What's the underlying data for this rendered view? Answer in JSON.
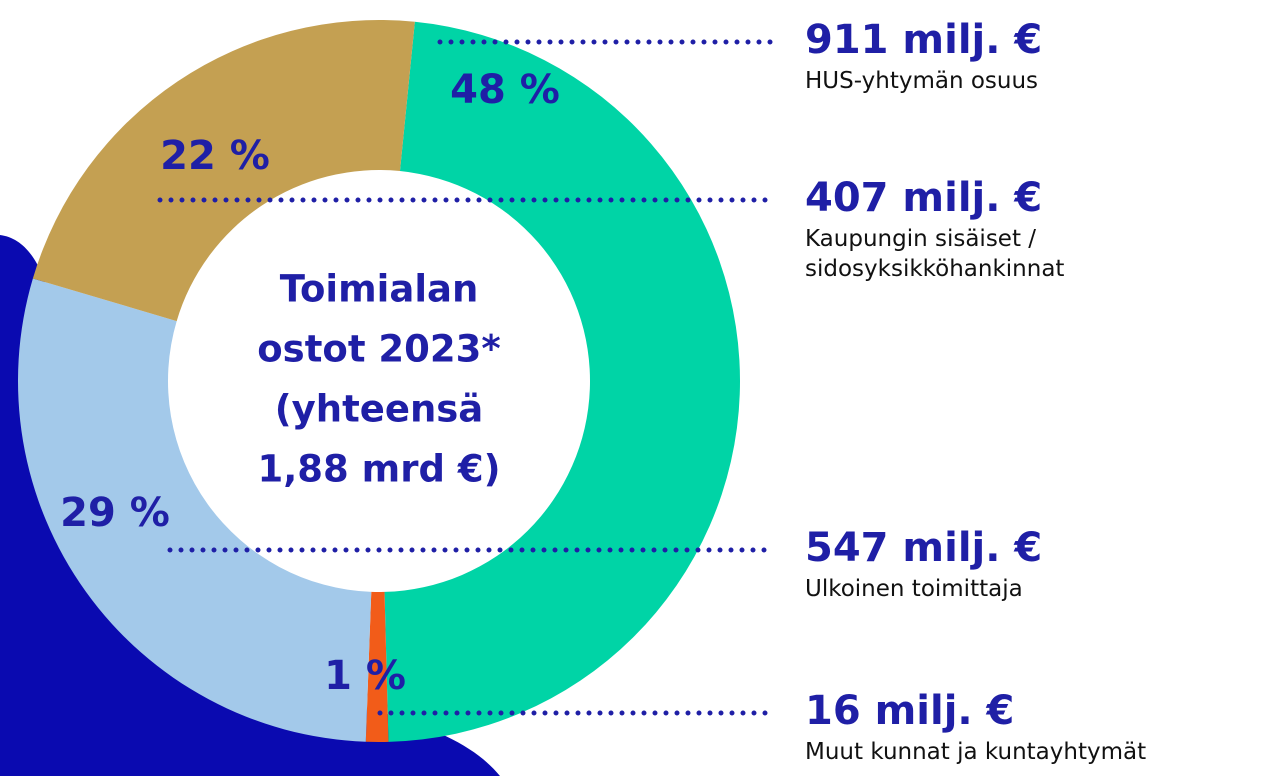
{
  "chart_data": {
    "type": "donut",
    "center_text": [
      "Toimialan",
      "ostot 2023*",
      "(yhteensä",
      "1,88 mrd €)"
    ],
    "categories": [
      "HUS-yhtymän osuus",
      "Muut kunnat ja kuntayhtymät",
      "Ulkoinen toimittaja",
      "Kaupungin sisäiset / sidosyksikköhankinnat"
    ],
    "values": [
      48,
      1,
      29,
      22
    ],
    "value_labels": [
      "48 %",
      "1 %",
      "29 %",
      "22 %"
    ],
    "amounts": [
      911,
      16,
      547,
      407
    ],
    "amount_labels": [
      "911 milj. €",
      "16 milj. €",
      "547 milj. €",
      "407 milj. €"
    ],
    "colors": [
      "#00d4a6",
      "#f25c19",
      "#a3c9ea",
      "#c4a052"
    ]
  }
}
